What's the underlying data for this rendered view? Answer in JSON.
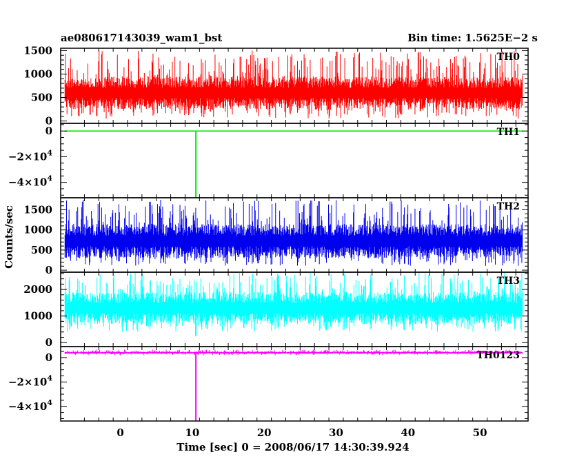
{
  "chart_data": {
    "type": "line",
    "title_left": "ae080617143039_wam1_bst",
    "title_right": "Bin time: 1.5625E−2 s",
    "xlabel": "Time [sec] 0 = 2008/06/17 14:30:39.924",
    "ylabel": "Counts/sec",
    "xlim": [
      -8.3,
      56.7
    ],
    "x_ticks": [
      0,
      10,
      20,
      30,
      40,
      50
    ],
    "x_tick_labels": [
      "0",
      "10",
      "20",
      "30",
      "40",
      "50"
    ],
    "data_x_range": [
      -7.7,
      55.9
    ],
    "grid": false,
    "panels": [
      {
        "label": "TH0",
        "color": "#ff0000",
        "ylim": [
          -50,
          1550
        ],
        "y_ticks": [
          0,
          500,
          1000,
          1500
        ],
        "y_tick_labels": [
          "0",
          "500",
          "1000",
          "1500"
        ],
        "base_range": [
          250,
          950
        ],
        "spike_range": [
          50,
          1500
        ],
        "glitch": null
      },
      {
        "label": "TH1",
        "color": "#00ee00",
        "ylim": [
          -52000,
          6000
        ],
        "y_ticks": [
          0,
          -20000,
          -40000
        ],
        "y_tick_labels": [
          "0",
          "−2×10^4",
          "−4×10^4"
        ],
        "base_range": [
          0,
          0
        ],
        "spike_range": [
          0,
          0
        ],
        "glitch": {
          "x": 10.5,
          "value": -52000
        }
      },
      {
        "label": "TH2",
        "color": "#0000ee",
        "ylim": [
          -50,
          1800
        ],
        "y_ticks": [
          0,
          500,
          1000,
          1500
        ],
        "y_tick_labels": [
          "0",
          "500",
          "1000",
          "1500"
        ],
        "base_range": [
          300,
          1150
        ],
        "spike_range": [
          100,
          1750
        ],
        "glitch": null
      },
      {
        "label": "TH3",
        "color": "#00ffff",
        "ylim": [
          -150,
          2650
        ],
        "y_ticks": [
          0,
          1000,
          2000
        ],
        "y_tick_labels": [
          "0",
          "1000",
          "2000"
        ],
        "base_range": [
          700,
          1900
        ],
        "spike_range": [
          400,
          2650
        ],
        "glitch": {
          "x": 10.5,
          "value": 250
        }
      },
      {
        "label": "TH0123",
        "color": "#ff00ff",
        "ylim": [
          -52000,
          9000
        ],
        "y_ticks": [
          0,
          -20000,
          -40000
        ],
        "y_tick_labels": [
          "0",
          "−2×10^4",
          "−4×10^4"
        ],
        "base_range": [
          3000,
          5000
        ],
        "spike_range": [
          2000,
          6500
        ],
        "glitch": {
          "x": 10.5,
          "value": -52000
        }
      }
    ]
  }
}
